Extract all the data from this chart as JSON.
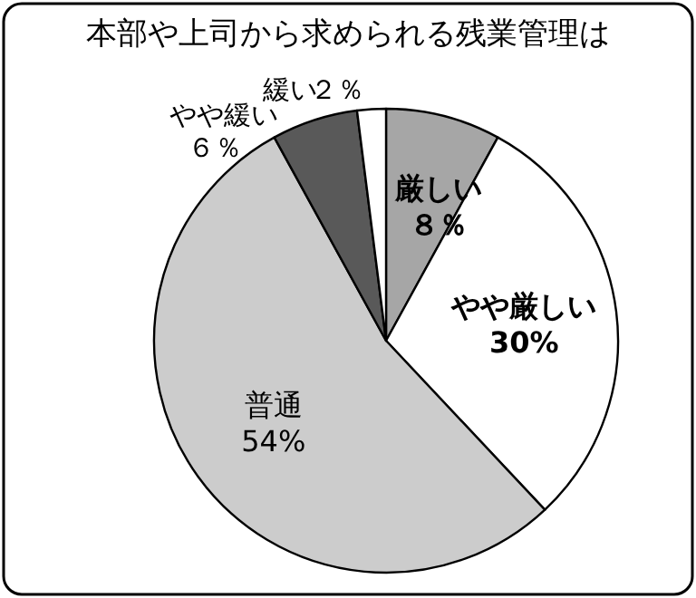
{
  "chart_data": {
    "type": "pie",
    "title": "本部や上司から求められる残業管理は",
    "categories": [
      "厳しい",
      "やや厳しい",
      "普通",
      "やや緩い",
      "緩い"
    ],
    "values": [
      8,
      30,
      54,
      6,
      2
    ],
    "colors": [
      "#a6a6a6",
      "#ffffff",
      "#cccccc",
      "#595959",
      "#ffffff"
    ],
    "value_labels": [
      "８％",
      "30%",
      "54%",
      "６％",
      "２％"
    ]
  }
}
